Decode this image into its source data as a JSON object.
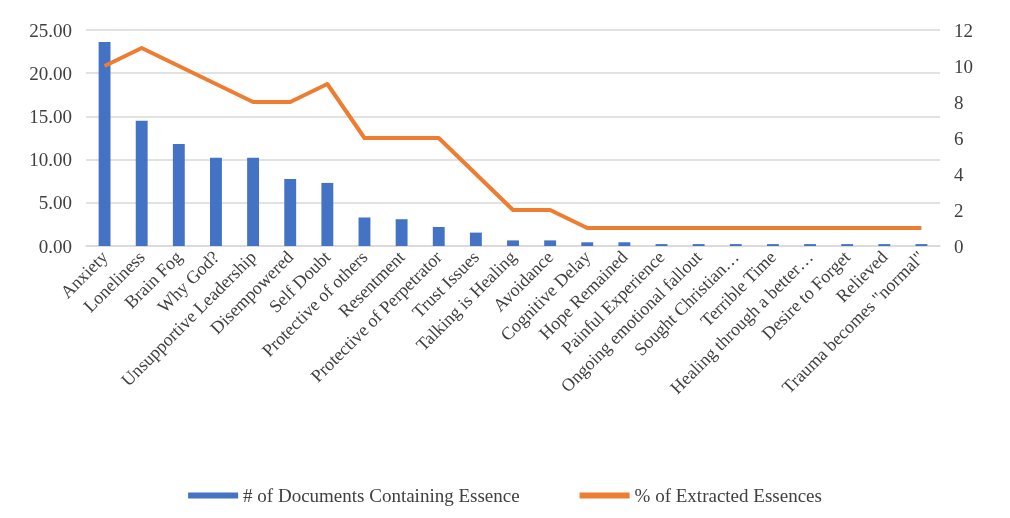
{
  "chart_data": {
    "type": "bar",
    "categories": [
      "Anxiety",
      "Loneliness",
      "Brain Fog",
      "Why God?",
      "Unsupportive Leadership",
      "Disempowered",
      "Self Doubt",
      "Protective of others",
      "Resentment",
      "Protective of Perpetrator",
      "Trust Issues",
      "Talking is Healing",
      "Avoidance",
      "Cognitive Delay",
      "Hope Remained",
      "Painful Experience",
      "Ongoing emotional fallout",
      "Sought Christian…",
      "Terrible Time",
      "Healing through a better…",
      "Desire to Forget",
      "Relieved",
      "Trauma becomes \"normal\""
    ],
    "series": [
      {
        "name": "# of Documents Containing Essence",
        "color": "#4472c4",
        "values": [
          23.6,
          14.5,
          11.8,
          10.2,
          10.2,
          7.75,
          7.3,
          3.3,
          3.1,
          2.2,
          1.55,
          0.65,
          0.65,
          0.43,
          0.43,
          0.22,
          0.22,
          0.22,
          0.22,
          0.22,
          0.22,
          0.22,
          0.22
        ]
      },
      {
        "name": "% of Extracted Essences",
        "type": "line",
        "axis": "y2",
        "color": "#ed7d31",
        "values": [
          10,
          11,
          10,
          9,
          8,
          8,
          9,
          6,
          6,
          6,
          4,
          2,
          2,
          1,
          1,
          1,
          1,
          1,
          1,
          1,
          1,
          1,
          1
        ]
      }
    ],
    "ylim": [
      0,
      25
    ],
    "yticks": [
      {
        "value": 0,
        "label": "0.00"
      },
      {
        "value": 5,
        "label": "5.00"
      },
      {
        "value": 10,
        "label": "10.00"
      },
      {
        "value": 15,
        "label": "15.00"
      },
      {
        "value": 20,
        "label": "20.00"
      },
      {
        "value": 25,
        "label": "25.00"
      }
    ],
    "y2lim": [
      0,
      12
    ],
    "y2ticks": [
      0,
      2,
      4,
      6,
      8,
      10,
      12
    ],
    "grid": "y",
    "legend": "bottom",
    "marker": "none"
  }
}
